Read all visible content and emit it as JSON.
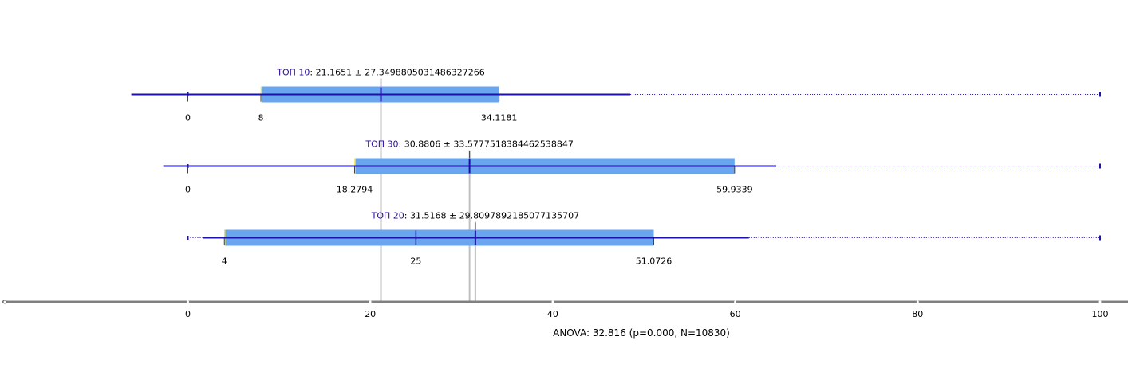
{
  "chart_data": {
    "type": "boxplot",
    "x_axis": {
      "ticks": [
        0,
        20,
        40,
        60,
        80,
        100
      ],
      "range": [
        -20.5,
        103
      ]
    },
    "groups": [
      {
        "name": "ТОП 10",
        "mean": 21.1651,
        "sd": 27.349880503148633,
        "stat_text": ": 21.1651 ± 27.3498805031486327266",
        "min": 0,
        "q1": 8,
        "median": 21.1651,
        "q3": 34.1181,
        "whisker_low": -6.2,
        "whisker_high": 48.5,
        "max": 100,
        "labels": [
          "0",
          "8",
          "34.1181"
        ]
      },
      {
        "name": "ТОП 30",
        "mean": 30.8806,
        "sd": 33.577751838446254,
        "stat_text": ": 30.8806 ± 33.5777518384462538847",
        "min": 0,
        "q1": 18.2794,
        "median": 30.8806,
        "q3": 59.9339,
        "whisker_low": -2.7,
        "whisker_high": 64.5,
        "max": 100,
        "labels": [
          "0",
          "18.2794",
          "59.9339"
        ]
      },
      {
        "name": "ТОП 20",
        "mean": 31.5168,
        "sd": 29.809789218507714,
        "stat_text": ": 31.5168 ± 29.8097892185077135707",
        "min": 0,
        "q1": 4,
        "median": 25,
        "q3": 51.0726,
        "whisker_low": 1.7,
        "whisker_high": 61.5,
        "max": 100,
        "labels": [
          "4",
          "25",
          "51.0726"
        ]
      }
    ],
    "mean_reference_lines": [
      21.1651,
      30.8806,
      31.5168
    ],
    "colors": {
      "box": "#6aa6f0",
      "line": "#1c12a8",
      "reference": "#c0c0c0",
      "axis": "#808080",
      "q1_marker": "#f0e040"
    }
  },
  "footer": {
    "anova": "ANOVA: 32.816 (p=0.000, N=10830)"
  }
}
